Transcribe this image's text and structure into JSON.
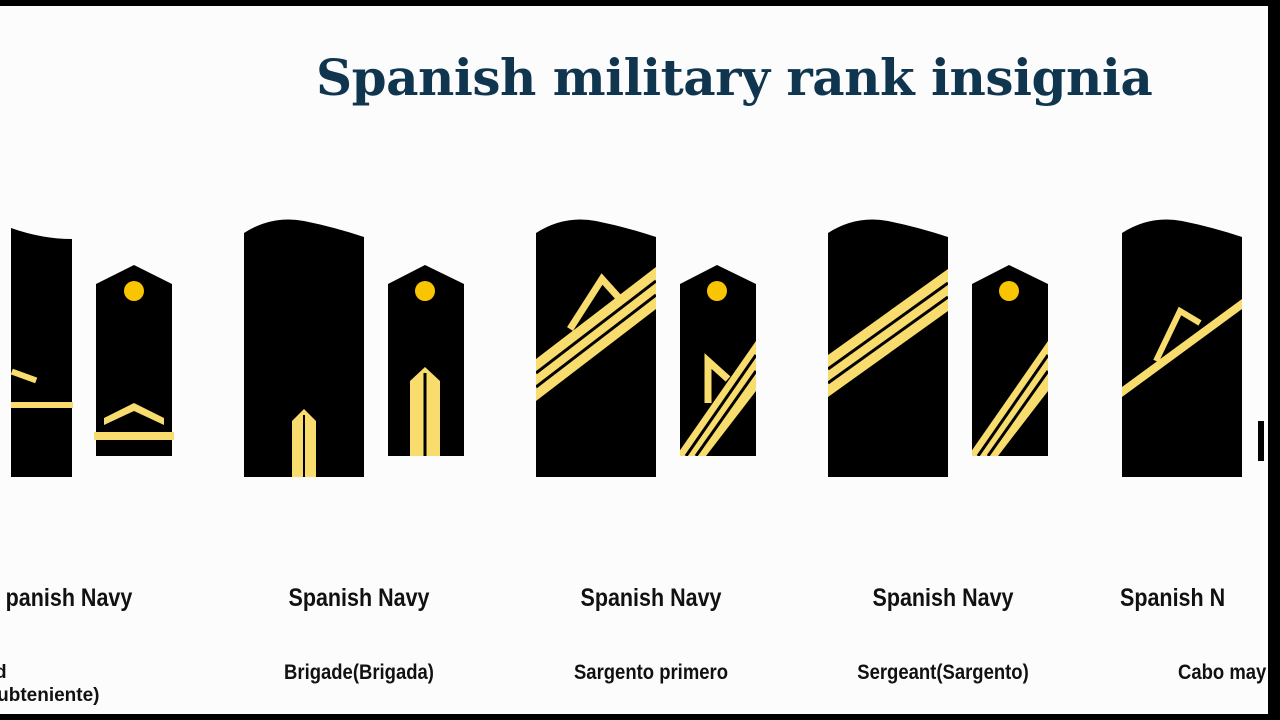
{
  "title": "Spanish military rank insignia",
  "colors": {
    "title": "#10354f",
    "insignia_bg": "#000000",
    "gold": "#f8dc6e",
    "button": "#f9c500"
  },
  "cards": [
    {
      "branch": "panish Navy",
      "rank": "Second\nnant(Subteniente)"
    },
    {
      "branch": "Spanish Navy",
      "rank": "Brigade(Brigada)"
    },
    {
      "branch": "Spanish Navy",
      "rank": "Sargento primero"
    },
    {
      "branch": "Spanish Navy",
      "rank": "Sergeant(Sargento)"
    },
    {
      "branch": "Spanish N",
      "rank": "Cabo may"
    }
  ]
}
